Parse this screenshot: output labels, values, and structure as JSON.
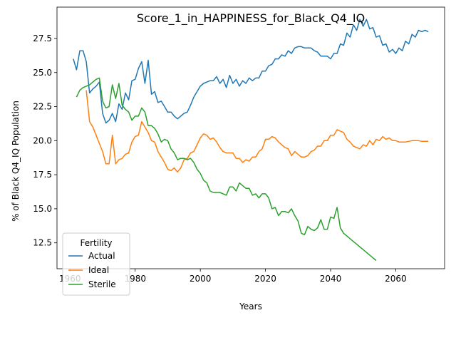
{
  "chart_data": {
    "type": "line",
    "title": "Score_1_in_HAPPINESS_for_Black_Q4_IQ",
    "xlabel": "Years",
    "ylabel": "% of Black Q4_IQ Population",
    "xlim": [
      1956,
      2075
    ],
    "ylim": [
      10.6,
      29.8
    ],
    "x_ticks": [
      1960,
      1980,
      2000,
      2020,
      2040,
      2060
    ],
    "y_ticks": [
      12.5,
      15.0,
      17.5,
      20.0,
      22.5,
      25.0,
      27.5
    ],
    "y_tick_labels": [
      "12.5",
      "15.0",
      "17.5",
      "20.0",
      "22.5",
      "25.0",
      "27.5"
    ],
    "grid": false,
    "legend": {
      "title": "Fertility",
      "position": "lower-left"
    },
    "series": [
      {
        "name": "Actual",
        "color": "#1f77b4",
        "points": [
          [
            1961,
            26.0
          ],
          [
            1962,
            25.2
          ],
          [
            1963,
            26.6
          ],
          [
            1964,
            26.6
          ],
          [
            1965,
            25.8
          ],
          [
            1966,
            23.5
          ],
          [
            1967,
            23.8
          ],
          [
            1968,
            24.0
          ],
          [
            1969,
            24.3
          ],
          [
            1970,
            22.0
          ],
          [
            1971,
            21.3
          ],
          [
            1972,
            21.5
          ],
          [
            1973,
            22.0
          ],
          [
            1974,
            21.4
          ],
          [
            1975,
            22.7
          ],
          [
            1976,
            22.3
          ],
          [
            1977,
            23.5
          ],
          [
            1978,
            23.0
          ],
          [
            1979,
            24.4
          ],
          [
            1980,
            24.5
          ],
          [
            1981,
            25.3
          ],
          [
            1982,
            25.8
          ],
          [
            1983,
            24.2
          ],
          [
            1984,
            25.9
          ],
          [
            1985,
            23.4
          ],
          [
            1986,
            23.6
          ],
          [
            1987,
            22.8
          ],
          [
            1988,
            22.9
          ],
          [
            1989,
            22.5
          ],
          [
            1990,
            22.1
          ],
          [
            1991,
            22.1
          ],
          [
            1992,
            21.8
          ],
          [
            1993,
            21.6
          ],
          [
            1994,
            21.8
          ],
          [
            1995,
            22.0
          ],
          [
            1996,
            22.1
          ],
          [
            1997,
            22.6
          ],
          [
            1998,
            23.2
          ],
          [
            1999,
            23.6
          ],
          [
            2000,
            24.0
          ],
          [
            2001,
            24.2
          ],
          [
            2002,
            24.3
          ],
          [
            2003,
            24.4
          ],
          [
            2004,
            24.4
          ],
          [
            2005,
            24.7
          ],
          [
            2006,
            24.2
          ],
          [
            2007,
            24.5
          ],
          [
            2008,
            23.9
          ],
          [
            2009,
            24.8
          ],
          [
            2010,
            24.2
          ],
          [
            2011,
            24.5
          ],
          [
            2012,
            24.0
          ],
          [
            2013,
            24.4
          ],
          [
            2014,
            24.2
          ],
          [
            2015,
            24.6
          ],
          [
            2016,
            24.4
          ],
          [
            2017,
            24.6
          ],
          [
            2018,
            24.6
          ],
          [
            2019,
            25.1
          ],
          [
            2020,
            25.1
          ],
          [
            2021,
            25.5
          ],
          [
            2022,
            25.6
          ],
          [
            2023,
            26.0
          ],
          [
            2024,
            26.0
          ],
          [
            2025,
            26.3
          ],
          [
            2026,
            26.2
          ],
          [
            2027,
            26.6
          ],
          [
            2028,
            26.4
          ],
          [
            2029,
            26.8
          ],
          [
            2030,
            26.9
          ],
          [
            2031,
            26.9
          ],
          [
            2032,
            26.8
          ],
          [
            2033,
            26.8
          ],
          [
            2034,
            26.8
          ],
          [
            2035,
            26.6
          ],
          [
            2036,
            26.5
          ],
          [
            2037,
            26.2
          ],
          [
            2038,
            26.2
          ],
          [
            2039,
            26.2
          ],
          [
            2040,
            26.0
          ],
          [
            2041,
            26.4
          ],
          [
            2042,
            26.4
          ],
          [
            2043,
            27.1
          ],
          [
            2044,
            27.0
          ],
          [
            2045,
            27.9
          ],
          [
            2046,
            27.6
          ],
          [
            2047,
            28.5
          ],
          [
            2048,
            28.1
          ],
          [
            2049,
            28.9
          ],
          [
            2050,
            28.4
          ],
          [
            2051,
            28.9
          ],
          [
            2052,
            28.2
          ],
          [
            2053,
            28.3
          ],
          [
            2054,
            27.6
          ],
          [
            2055,
            27.7
          ],
          [
            2056,
            27.0
          ],
          [
            2057,
            27.1
          ],
          [
            2058,
            26.5
          ],
          [
            2059,
            26.7
          ],
          [
            2060,
            26.4
          ],
          [
            2061,
            26.8
          ],
          [
            2062,
            26.6
          ],
          [
            2063,
            27.3
          ],
          [
            2064,
            27.1
          ],
          [
            2065,
            27.8
          ],
          [
            2066,
            27.6
          ],
          [
            2067,
            28.1
          ],
          [
            2068,
            28.0
          ],
          [
            2069,
            28.1
          ],
          [
            2070,
            28.0
          ]
        ]
      },
      {
        "name": "Ideal",
        "color": "#ff7f0e",
        "points": [
          [
            1965,
            23.7
          ],
          [
            1966,
            21.4
          ],
          [
            1967,
            21.0
          ],
          [
            1968,
            20.4
          ],
          [
            1969,
            19.8
          ],
          [
            1970,
            19.2
          ],
          [
            1971,
            18.3
          ],
          [
            1972,
            18.3
          ],
          [
            1973,
            20.4
          ],
          [
            1974,
            18.3
          ],
          [
            1975,
            18.6
          ],
          [
            1976,
            18.7
          ],
          [
            1977,
            19.0
          ],
          [
            1978,
            19.1
          ],
          [
            1979,
            19.9
          ],
          [
            1980,
            20.3
          ],
          [
            1981,
            20.4
          ],
          [
            1982,
            21.4
          ],
          [
            1983,
            21.0
          ],
          [
            1984,
            20.6
          ],
          [
            1985,
            20.0
          ],
          [
            1986,
            19.9
          ],
          [
            1987,
            19.2
          ],
          [
            1988,
            18.8
          ],
          [
            1989,
            18.4
          ],
          [
            1990,
            17.9
          ],
          [
            1991,
            17.8
          ],
          [
            1992,
            18.0
          ],
          [
            1993,
            17.7
          ],
          [
            1994,
            18.0
          ],
          [
            1995,
            18.6
          ],
          [
            1996,
            18.7
          ],
          [
            1997,
            19.1
          ],
          [
            1998,
            19.2
          ],
          [
            1999,
            19.7
          ],
          [
            2000,
            20.2
          ],
          [
            2001,
            20.5
          ],
          [
            2002,
            20.4
          ],
          [
            2003,
            20.1
          ],
          [
            2004,
            20.2
          ],
          [
            2005,
            19.9
          ],
          [
            2006,
            19.5
          ],
          [
            2007,
            19.2
          ],
          [
            2008,
            19.1
          ],
          [
            2009,
            19.1
          ],
          [
            2010,
            19.1
          ],
          [
            2011,
            18.7
          ],
          [
            2012,
            18.7
          ],
          [
            2013,
            18.4
          ],
          [
            2014,
            18.6
          ],
          [
            2015,
            18.5
          ],
          [
            2016,
            18.8
          ],
          [
            2017,
            18.8
          ],
          [
            2018,
            19.2
          ],
          [
            2019,
            19.4
          ],
          [
            2020,
            20.1
          ],
          [
            2021,
            20.1
          ],
          [
            2022,
            20.3
          ],
          [
            2023,
            20.2
          ],
          [
            2024,
            19.9
          ],
          [
            2025,
            19.7
          ],
          [
            2026,
            19.5
          ],
          [
            2027,
            19.4
          ],
          [
            2028,
            18.9
          ],
          [
            2029,
            19.2
          ],
          [
            2030,
            19.0
          ],
          [
            2031,
            18.8
          ],
          [
            2032,
            18.8
          ],
          [
            2033,
            18.9
          ],
          [
            2034,
            19.2
          ],
          [
            2035,
            19.3
          ],
          [
            2036,
            19.6
          ],
          [
            2037,
            19.6
          ],
          [
            2038,
            20.0
          ],
          [
            2039,
            20.0
          ],
          [
            2040,
            20.4
          ],
          [
            2041,
            20.4
          ],
          [
            2042,
            20.8
          ],
          [
            2043,
            20.7
          ],
          [
            2044,
            20.6
          ],
          [
            2045,
            20.1
          ],
          [
            2046,
            19.9
          ],
          [
            2047,
            19.6
          ],
          [
            2048,
            19.5
          ],
          [
            2049,
            19.4
          ],
          [
            2050,
            19.7
          ],
          [
            2051,
            19.6
          ],
          [
            2052,
            20.0
          ],
          [
            2053,
            19.7
          ],
          [
            2054,
            20.1
          ],
          [
            2055,
            20.0
          ],
          [
            2056,
            20.3
          ],
          [
            2057,
            20.1
          ],
          [
            2058,
            20.2
          ],
          [
            2059,
            20.0
          ],
          [
            2060,
            20.0
          ],
          [
            2061,
            19.9
          ],
          [
            2062,
            19.9
          ],
          [
            2063,
            19.9
          ],
          [
            2064,
            19.95
          ],
          [
            2065,
            20.0
          ],
          [
            2066,
            20.0
          ],
          [
            2067,
            20.0
          ],
          [
            2068,
            19.95
          ],
          [
            2069,
            19.95
          ],
          [
            2070,
            19.95
          ]
        ]
      },
      {
        "name": "Sterile",
        "color": "#2ca02c",
        "points": [
          [
            1962,
            23.2
          ],
          [
            1963,
            23.7
          ],
          [
            1964,
            23.9
          ],
          [
            1965,
            24.0
          ],
          [
            1966,
            24.1
          ],
          [
            1967,
            24.3
          ],
          [
            1968,
            24.5
          ],
          [
            1969,
            24.6
          ],
          [
            1970,
            22.9
          ],
          [
            1971,
            22.4
          ],
          [
            1972,
            22.5
          ],
          [
            1973,
            24.1
          ],
          [
            1974,
            23.1
          ],
          [
            1975,
            24.2
          ],
          [
            1976,
            22.6
          ],
          [
            1977,
            22.3
          ],
          [
            1978,
            22.1
          ],
          [
            1979,
            21.5
          ],
          [
            1980,
            21.8
          ],
          [
            1981,
            21.8
          ],
          [
            1982,
            22.4
          ],
          [
            1983,
            22.1
          ],
          [
            1984,
            21.1
          ],
          [
            1985,
            21.1
          ],
          [
            1986,
            20.9
          ],
          [
            1987,
            20.5
          ],
          [
            1988,
            19.9
          ],
          [
            1989,
            20.1
          ],
          [
            1990,
            20.0
          ],
          [
            1991,
            19.4
          ],
          [
            1992,
            19.1
          ],
          [
            1993,
            18.6
          ],
          [
            1994,
            18.7
          ],
          [
            1995,
            18.7
          ],
          [
            1996,
            18.6
          ],
          [
            1997,
            18.7
          ],
          [
            1998,
            18.4
          ],
          [
            1999,
            17.9
          ],
          [
            2000,
            17.6
          ],
          [
            2001,
            17.1
          ],
          [
            2002,
            16.9
          ],
          [
            2003,
            16.3
          ],
          [
            2004,
            16.2
          ],
          [
            2005,
            16.2
          ],
          [
            2006,
            16.2
          ],
          [
            2007,
            16.1
          ],
          [
            2008,
            16.0
          ],
          [
            2009,
            16.6
          ],
          [
            2010,
            16.6
          ],
          [
            2011,
            16.3
          ],
          [
            2012,
            16.9
          ],
          [
            2013,
            16.7
          ],
          [
            2014,
            16.5
          ],
          [
            2015,
            16.5
          ],
          [
            2016,
            16.0
          ],
          [
            2017,
            16.1
          ],
          [
            2018,
            15.8
          ],
          [
            2019,
            16.1
          ],
          [
            2020,
            16.1
          ],
          [
            2021,
            15.8
          ],
          [
            2022,
            15.0
          ],
          [
            2023,
            15.1
          ],
          [
            2024,
            14.5
          ],
          [
            2025,
            14.8
          ],
          [
            2026,
            14.8
          ],
          [
            2027,
            14.7
          ],
          [
            2028,
            15.0
          ],
          [
            2029,
            14.5
          ],
          [
            2030,
            14.1
          ],
          [
            2031,
            13.2
          ],
          [
            2032,
            13.1
          ],
          [
            2033,
            13.7
          ],
          [
            2034,
            13.5
          ],
          [
            2035,
            13.4
          ],
          [
            2036,
            13.6
          ],
          [
            2037,
            14.2
          ],
          [
            2038,
            13.5
          ],
          [
            2039,
            13.5
          ],
          [
            2040,
            14.4
          ],
          [
            2041,
            14.3
          ],
          [
            2042,
            15.1
          ],
          [
            2043,
            13.6
          ],
          [
            2044,
            13.2
          ],
          [
            2045,
            13.0
          ],
          [
            2046,
            12.8
          ],
          [
            2047,
            12.6
          ],
          [
            2048,
            12.4
          ],
          [
            2049,
            12.2
          ],
          [
            2050,
            12.0
          ],
          [
            2051,
            11.8
          ],
          [
            2052,
            11.6
          ],
          [
            2053,
            11.4
          ],
          [
            2054,
            11.2
          ]
        ]
      }
    ]
  }
}
